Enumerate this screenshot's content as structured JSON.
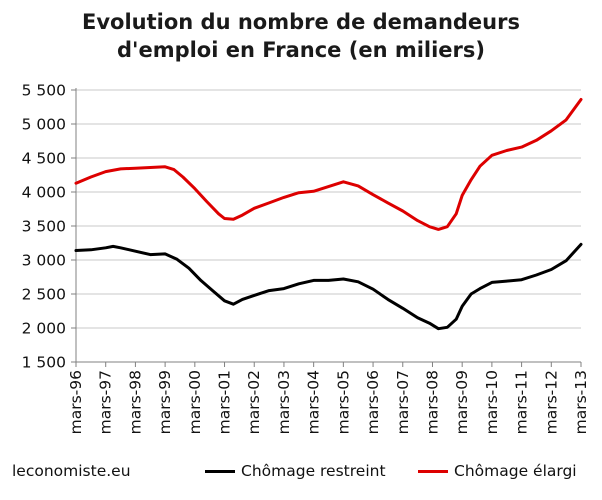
{
  "title": {
    "line1": "Evolution du nombre de demandeurs",
    "line2": "d'emploi en France (en miliers)"
  },
  "source": "leconomiste.eu",
  "colors": {
    "restreint": "#000000",
    "elargi": "#dd0000",
    "grid": "#c9c9c9",
    "axis": "#808080"
  },
  "chart_data": {
    "type": "line",
    "title": "Evolution du nombre de demandeurs d'emploi en France (en miliers)",
    "xlabel": "",
    "ylabel": "",
    "x_range": [
      1996.0,
      2013.0
    ],
    "x_tick_values": [
      1996,
      1997,
      1998,
      1999,
      2000,
      2001,
      2002,
      2003,
      2004,
      2005,
      2006,
      2007,
      2008,
      2009,
      2010,
      2011,
      2012,
      2013
    ],
    "categories": [
      "mars-96",
      "mars-97",
      "mars-98",
      "mars-99",
      "mars-00",
      "mars-01",
      "mars-02",
      "mars-03",
      "mars-04",
      "mars-05",
      "mars-06",
      "mars-07",
      "mars-08",
      "mars-09",
      "mars-10",
      "mars-11",
      "mars-12",
      "mars-13"
    ],
    "ylim": [
      1500,
      5500
    ],
    "y_ticks": [
      1500,
      2000,
      2500,
      3000,
      3500,
      4000,
      4500,
      5000,
      5500
    ],
    "y_tick_labels": [
      "1 500",
      "2 000",
      "2 500",
      "3 000",
      "3 500",
      "4 000",
      "4 500",
      "5 000",
      "5 500"
    ],
    "grid": "horizontal",
    "legend_position": "bottom",
    "series": [
      {
        "name": "Chômage restreint",
        "color": "#000000",
        "x": [
          1996.0,
          1996.5,
          1997.0,
          1997.25,
          1997.5,
          1998.0,
          1998.5,
          1999.0,
          1999.4,
          1999.8,
          2000.2,
          2000.6,
          2001.0,
          2001.3,
          2001.6,
          2002.0,
          2002.5,
          2003.0,
          2003.5,
          2004.0,
          2004.5,
          2005.0,
          2005.5,
          2006.0,
          2006.5,
          2007.0,
          2007.5,
          2007.9,
          2008.2,
          2008.5,
          2008.8,
          2009.0,
          2009.3,
          2009.6,
          2010.0,
          2010.5,
          2011.0,
          2011.5,
          2012.0,
          2012.5,
          2013.0
        ],
        "y": [
          3140,
          3150,
          3180,
          3200,
          3180,
          3130,
          3080,
          3090,
          3010,
          2880,
          2700,
          2550,
          2400,
          2350,
          2420,
          2480,
          2550,
          2580,
          2650,
          2700,
          2700,
          2720,
          2680,
          2570,
          2420,
          2290,
          2150,
          2070,
          1990,
          2010,
          2130,
          2320,
          2500,
          2580,
          2670,
          2690,
          2710,
          2780,
          2860,
          2990,
          3230
        ]
      },
      {
        "name": "Chômage élargi",
        "color": "#dd0000",
        "x": [
          1996.0,
          1996.5,
          1997.0,
          1997.5,
          1998.0,
          1998.5,
          1999.0,
          1999.3,
          1999.6,
          2000.0,
          2000.4,
          2000.8,
          2001.0,
          2001.3,
          2001.6,
          2002.0,
          2002.5,
          2003.0,
          2003.5,
          2004.0,
          2004.5,
          2005.0,
          2005.5,
          2006.0,
          2006.5,
          2007.0,
          2007.5,
          2007.9,
          2008.2,
          2008.5,
          2008.8,
          2009.0,
          2009.3,
          2009.6,
          2010.0,
          2010.5,
          2011.0,
          2011.5,
          2012.0,
          2012.5,
          2013.0
        ],
        "y": [
          4130,
          4220,
          4300,
          4340,
          4350,
          4360,
          4370,
          4330,
          4220,
          4050,
          3860,
          3680,
          3610,
          3600,
          3660,
          3760,
          3840,
          3920,
          3990,
          4010,
          4080,
          4150,
          4090,
          3960,
          3840,
          3720,
          3580,
          3490,
          3450,
          3490,
          3680,
          3950,
          4180,
          4380,
          4540,
          4610,
          4660,
          4760,
          4900,
          5060,
          5360
        ]
      }
    ]
  }
}
